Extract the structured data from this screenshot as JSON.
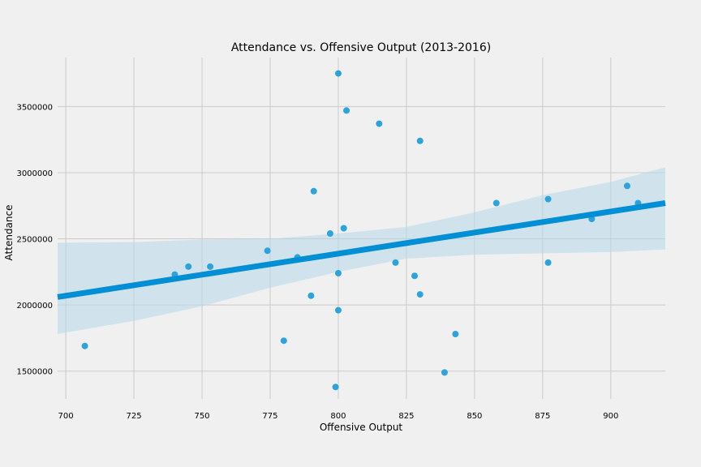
{
  "chart_data": {
    "type": "scatter",
    "title": "Attendance vs. Offensive Output (2013-2016)",
    "xlabel": "Offensive Output",
    "ylabel": "Attendance",
    "xlim": [
      697,
      920
    ],
    "ylim": [
      1290000,
      3870000
    ],
    "xticks": [
      700,
      725,
      750,
      775,
      800,
      825,
      850,
      875,
      900
    ],
    "yticks": [
      1500000,
      2000000,
      2500000,
      3000000,
      3500000
    ],
    "grid": true,
    "colors": {
      "background": "#f0f0f0",
      "grid": "#cbcbcb",
      "points": "#30a2da",
      "regression_line": "#008fd5",
      "confidence_band": "#b6d8ea"
    },
    "points": [
      {
        "x": 707,
        "y": 1690000
      },
      {
        "x": 740,
        "y": 2230000
      },
      {
        "x": 745,
        "y": 2290000
      },
      {
        "x": 753,
        "y": 2290000
      },
      {
        "x": 774,
        "y": 2410000
      },
      {
        "x": 780,
        "y": 1730000
      },
      {
        "x": 785,
        "y": 2360000
      },
      {
        "x": 790,
        "y": 2070000
      },
      {
        "x": 791,
        "y": 2860000
      },
      {
        "x": 797,
        "y": 2540000
      },
      {
        "x": 799,
        "y": 1380000
      },
      {
        "x": 800,
        "y": 2240000
      },
      {
        "x": 800,
        "y": 3750000
      },
      {
        "x": 800,
        "y": 1960000
      },
      {
        "x": 802,
        "y": 2580000
      },
      {
        "x": 803,
        "y": 3470000
      },
      {
        "x": 815,
        "y": 3370000
      },
      {
        "x": 821,
        "y": 2320000
      },
      {
        "x": 828,
        "y": 2220000
      },
      {
        "x": 830,
        "y": 3240000
      },
      {
        "x": 830,
        "y": 2080000
      },
      {
        "x": 839,
        "y": 1490000
      },
      {
        "x": 843,
        "y": 1780000
      },
      {
        "x": 858,
        "y": 2770000
      },
      {
        "x": 877,
        "y": 2320000
      },
      {
        "x": 877,
        "y": 2800000
      },
      {
        "x": 893,
        "y": 2650000
      },
      {
        "x": 906,
        "y": 2900000
      },
      {
        "x": 910,
        "y": 2770000
      }
    ],
    "regression": {
      "x": [
        697,
        920
      ],
      "y": [
        2060000,
        2770000
      ]
    },
    "confidence_band": {
      "x": [
        697,
        725,
        750,
        775,
        800,
        825,
        850,
        875,
        900,
        920
      ],
      "upper": [
        2470000,
        2475000,
        2495000,
        2500000,
        2540000,
        2590000,
        2700000,
        2830000,
        2930000,
        3040000
      ],
      "lower": [
        1780000,
        1880000,
        1990000,
        2130000,
        2250000,
        2350000,
        2380000,
        2390000,
        2400000,
        2420000
      ]
    }
  }
}
